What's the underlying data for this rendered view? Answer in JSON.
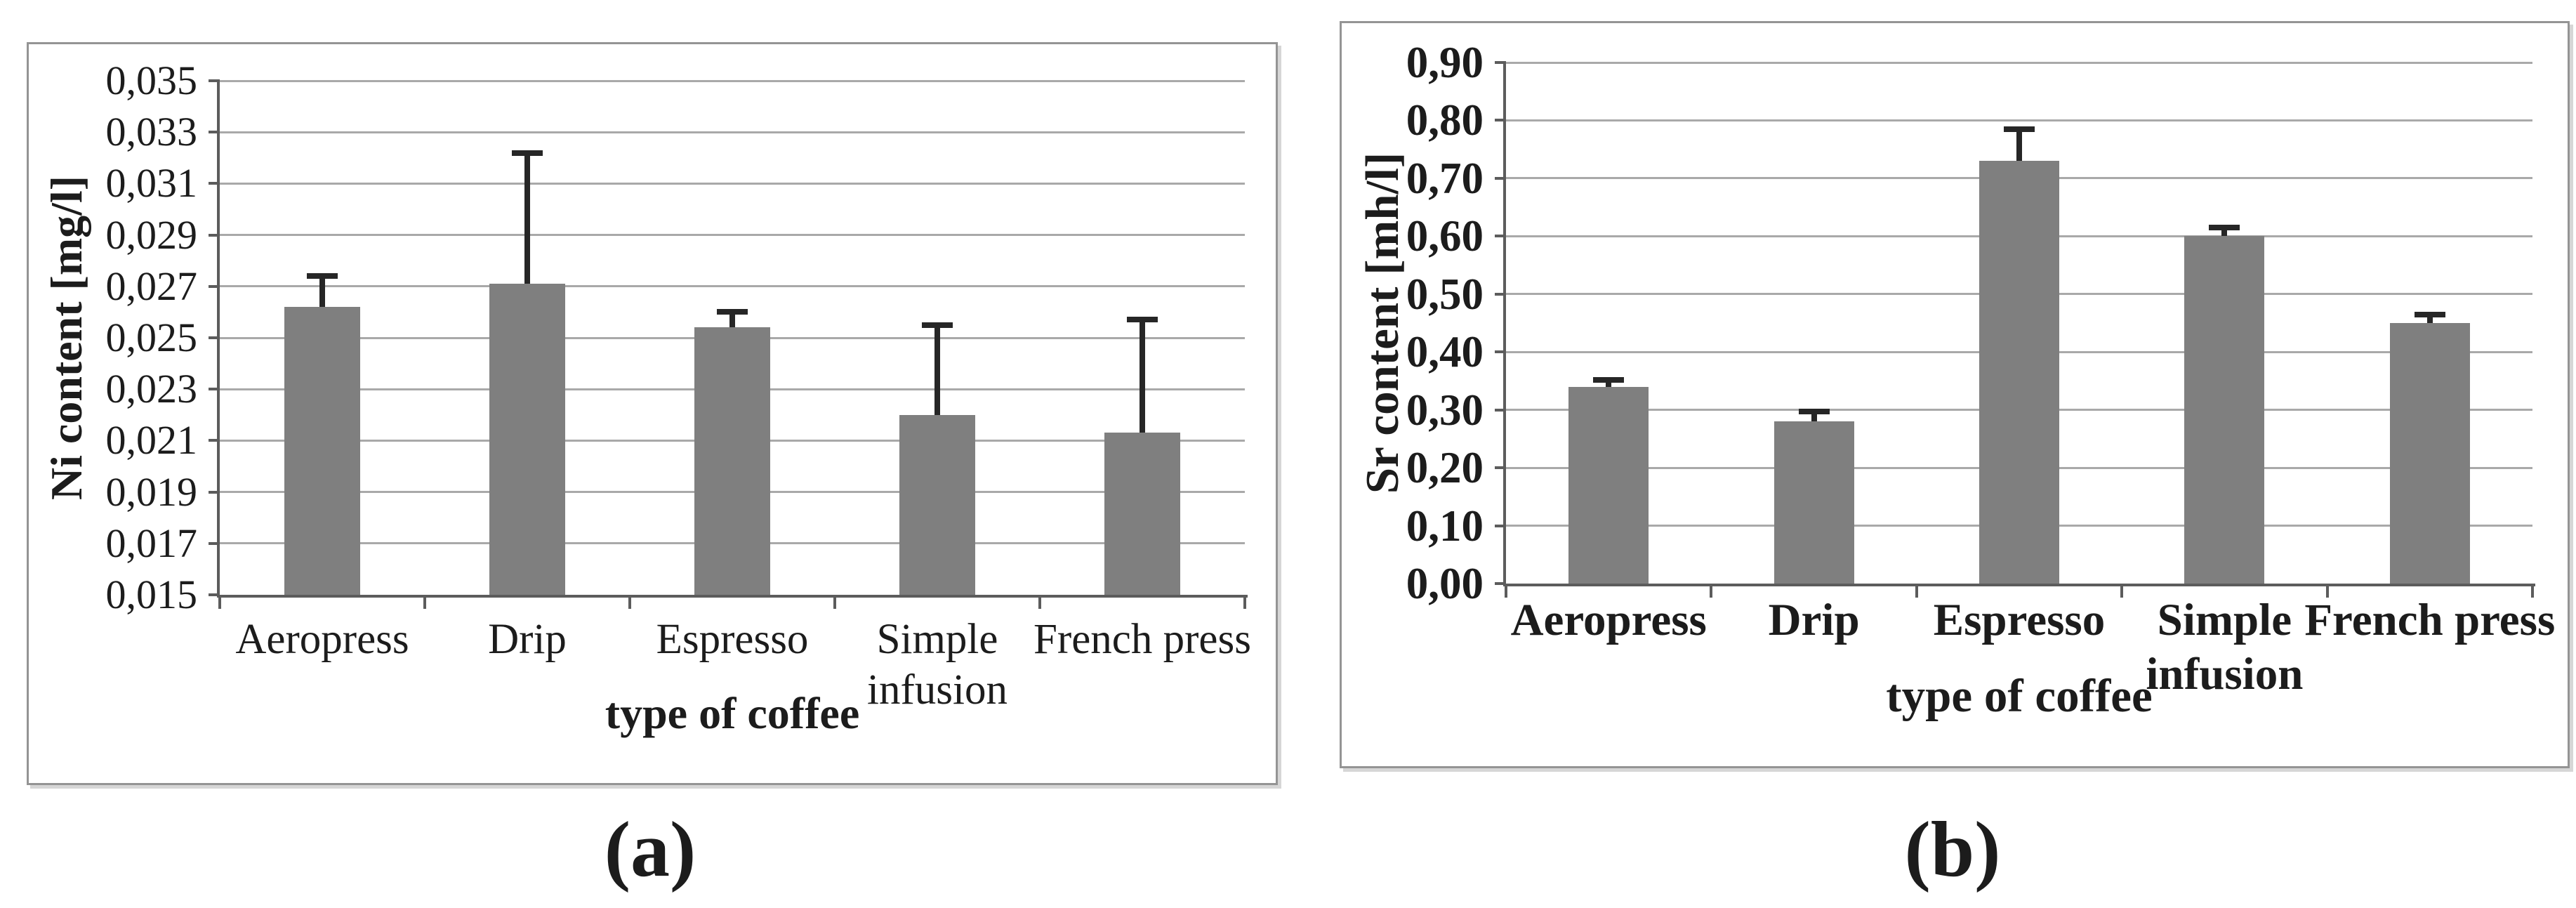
{
  "figure": {
    "background": "#ffffff",
    "panels": [
      "a",
      "b"
    ]
  },
  "colors": {
    "bar": "#7f7f7f",
    "grid": "#a9a9a9",
    "axis": "#5c5c5c",
    "error": "#262626",
    "panel_border": "#949494",
    "text": "#1c1c1c"
  },
  "chart_data": [
    {
      "id": "a",
      "type": "bar",
      "caption": "(a)",
      "ylabel": "Ni content [mg/l]",
      "xlabel": "type of coffee",
      "categories": [
        "Aeropress",
        "Drip",
        "Espresso",
        "Simple infusion",
        "French press"
      ],
      "values": [
        0.0262,
        0.0271,
        0.0254,
        0.022,
        0.0213
      ],
      "errors_up": [
        0.0012,
        0.0051,
        0.0006,
        0.0035,
        0.0044
      ],
      "ylim": [
        0.015,
        0.035
      ],
      "ytick_step": 0.002,
      "ytick_labels": [
        "0,015",
        "0,017",
        "0,019",
        "0,021",
        "0,023",
        "0,025",
        "0,027",
        "0,029",
        "0,031",
        "0,033",
        "0,035"
      ],
      "grid": true,
      "legend": null
    },
    {
      "id": "b",
      "type": "bar",
      "caption": "(b)",
      "ylabel": "Sr content [mh/l]",
      "xlabel": "type of coffee",
      "categories": [
        "Aeropress",
        "Drip",
        "Espresso",
        "Simple infusion",
        "French press"
      ],
      "values": [
        0.34,
        0.28,
        0.73,
        0.6,
        0.45
      ],
      "errors_up": [
        0.012,
        0.017,
        0.055,
        0.015,
        0.015
      ],
      "ylim": [
        0.0,
        0.9
      ],
      "ytick_step": 0.1,
      "ytick_labels": [
        "0,00",
        "0,10",
        "0,20",
        "0,30",
        "0,40",
        "0,50",
        "0,60",
        "0,70",
        "0,80",
        "0,90"
      ],
      "grid": true,
      "legend": null
    }
  ]
}
